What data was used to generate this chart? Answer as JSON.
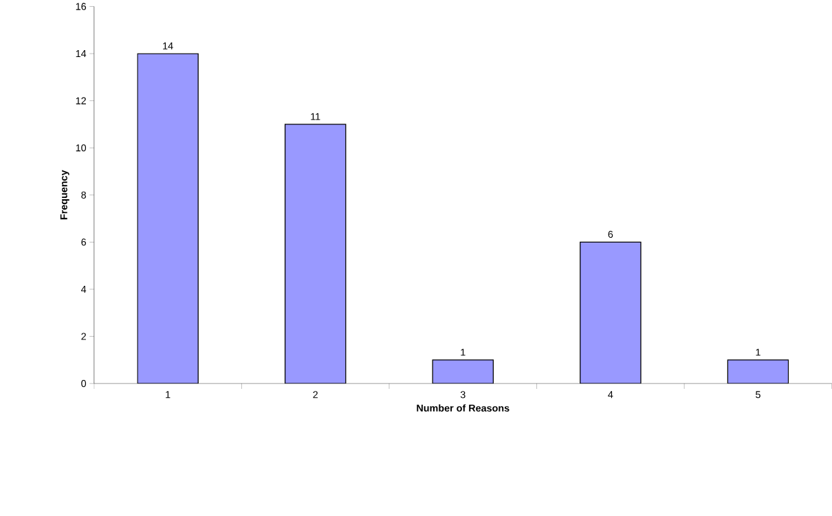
{
  "chart_data": {
    "type": "bar",
    "xlabel": "Number of Reasons",
    "ylabel": "Frequency",
    "categories": [
      "1",
      "2",
      "3",
      "4",
      "5"
    ],
    "values": [
      14,
      11,
      1,
      6,
      1
    ],
    "color": "#9999ff",
    "ylim": [
      0,
      16
    ],
    "yticks": [
      0,
      2,
      4,
      6,
      8,
      10,
      12,
      14,
      16
    ],
    "data_labels": true,
    "grid": false
  }
}
